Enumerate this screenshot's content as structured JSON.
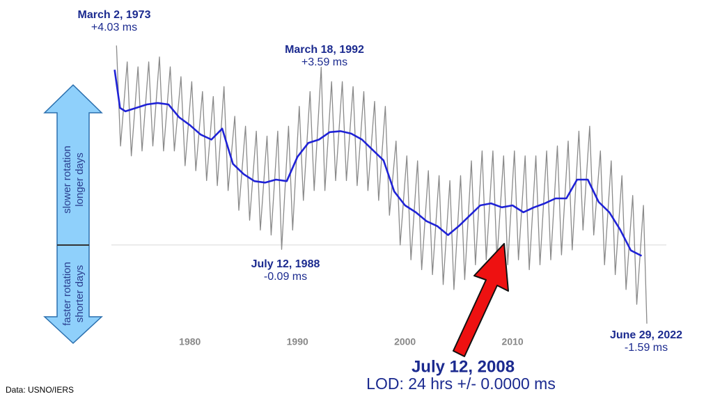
{
  "chart_data": {
    "type": "line",
    "xlim": [
      1972.7,
      2024.3
    ],
    "xticks": [
      1980,
      1990,
      2000,
      2010
    ],
    "ylim": [
      -2,
      4.5
    ],
    "grid": false,
    "reference_line": 0,
    "series": [
      {
        "color": "#8a8a8a",
        "x": [
          1973.17,
          1973.55,
          1974.17,
          1974.55,
          1975.17,
          1975.55,
          1976.17,
          1976.55,
          1977.17,
          1977.55,
          1978.17,
          1978.55,
          1979.17,
          1979.55,
          1980.17,
          1980.55,
          1981.17,
          1981.55,
          1982.17,
          1982.55,
          1983.17,
          1983.55,
          1984.17,
          1984.55,
          1985.17,
          1985.55,
          1986.17,
          1986.55,
          1987.17,
          1987.55,
          1988.17,
          1988.53,
          1989.17,
          1989.55,
          1990.17,
          1990.55,
          1991.17,
          1991.55,
          1992.21,
          1992.55,
          1993.17,
          1993.55,
          1994.17,
          1994.55,
          1995.17,
          1995.55,
          1996.17,
          1996.55,
          1997.17,
          1997.55,
          1998.17,
          1998.55,
          1999.17,
          1999.55,
          2000.17,
          2000.55,
          2001.17,
          2001.55,
          2002.17,
          2002.55,
          2003.17,
          2003.55,
          2004.17,
          2004.55,
          2005.17,
          2005.55,
          2006.17,
          2006.55,
          2007.17,
          2007.55,
          2008.17,
          2008.55,
          2009.17,
          2009.55,
          2010.17,
          2010.55,
          2011.17,
          2011.55,
          2012.17,
          2012.55,
          2013.17,
          2013.55,
          2014.17,
          2014.55,
          2015.17,
          2015.55,
          2016.17,
          2016.55,
          2017.17,
          2017.55,
          2018.17,
          2018.55,
          2019.17,
          2019.55,
          2020.17,
          2020.55,
          2021.17,
          2021.55,
          2022.17,
          2022.49
        ],
        "values": [
          4.03,
          2.0,
          3.7,
          1.8,
          3.6,
          1.9,
          3.7,
          2.0,
          3.8,
          1.9,
          3.6,
          1.9,
          3.4,
          1.6,
          3.3,
          1.5,
          3.1,
          1.3,
          3.0,
          1.2,
          3.2,
          1.1,
          2.6,
          0.7,
          2.4,
          0.5,
          2.3,
          0.3,
          2.2,
          0.2,
          2.3,
          -0.09,
          2.4,
          0.3,
          2.8,
          0.9,
          3.1,
          1.1,
          3.59,
          1.1,
          3.3,
          1.3,
          3.3,
          1.3,
          3.2,
          1.2,
          3.1,
          1.1,
          2.9,
          0.9,
          2.8,
          0.6,
          2.1,
          0.0,
          1.8,
          -0.3,
          1.7,
          -0.5,
          1.5,
          -0.6,
          1.4,
          -0.8,
          1.3,
          -0.9,
          1.4,
          -0.7,
          1.7,
          -0.4,
          1.9,
          -0.3,
          1.9,
          -0.3,
          1.8,
          -0.4,
          1.9,
          -0.3,
          1.8,
          -0.5,
          1.8,
          -0.4,
          1.9,
          -0.3,
          2.0,
          -0.2,
          2.1,
          -0.1,
          2.3,
          0.3,
          2.4,
          0.2,
          1.9,
          -0.4,
          1.7,
          -0.6,
          1.4,
          -0.9,
          1.0,
          -1.2,
          0.8,
          -1.59
        ]
      },
      {
        "color": "#1f22d6",
        "x": [
          1973.0,
          1973.5,
          1974,
          1975,
          1976,
          1977,
          1978,
          1979,
          1980,
          1981,
          1982,
          1983,
          1984,
          1985,
          1986,
          1987,
          1988,
          1989,
          1990,
          1991,
          1992,
          1993,
          1994,
          1995,
          1996,
          1997,
          1998,
          1999,
          2000,
          2001,
          2002,
          2003,
          2004,
          2005,
          2006,
          2007,
          2008,
          2009,
          2010,
          2011,
          2012,
          2013,
          2014,
          2015,
          2016,
          2017,
          2018,
          2019,
          2020,
          2021,
          2022
        ],
        "values": [
          3.54,
          2.77,
          2.7,
          2.77,
          2.84,
          2.87,
          2.84,
          2.58,
          2.42,
          2.23,
          2.13,
          2.35,
          1.64,
          1.43,
          1.29,
          1.26,
          1.32,
          1.29,
          1.78,
          2.06,
          2.13,
          2.28,
          2.3,
          2.25,
          2.13,
          1.92,
          1.71,
          1.08,
          0.8,
          0.66,
          0.48,
          0.38,
          0.2,
          0.38,
          0.59,
          0.8,
          0.84,
          0.76,
          0.8,
          0.66,
          0.76,
          0.84,
          0.94,
          0.94,
          1.32,
          1.32,
          0.87,
          0.66,
          0.31,
          -0.11,
          -0.22
        ]
      }
    ],
    "annotations": [
      {
        "date": "March 2, 1973",
        "label": "+4.03 ms"
      },
      {
        "date": "March 18, 1992",
        "label": "+3.59 ms"
      },
      {
        "date": "July 12, 1988",
        "label": "-0.09 ms"
      },
      {
        "date": "June 29, 2022",
        "label": "-1.59 ms"
      }
    ],
    "side_labels": {
      "up": [
        "slower rotation",
        "longer days"
      ],
      "down": [
        "faster rotation",
        "shorter days"
      ]
    },
    "callout": {
      "date": "July 12, 2008",
      "text": "LOD: 24 hrs +/- 0.0000 ms"
    },
    "source": "Data: USNO/IERS"
  }
}
